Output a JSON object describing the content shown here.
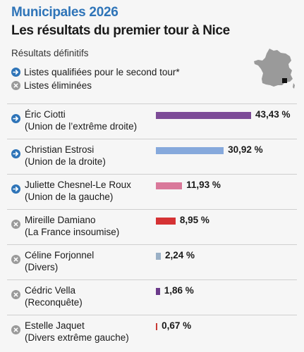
{
  "header": {
    "kicker": "Municipales 2026",
    "title": "Les résultats du premier tour à Nice",
    "subtitle": "Résultats définitifs"
  },
  "legend": {
    "qualified": "Listes qualifiées pour le second tour*",
    "eliminated": "Listes éliminées"
  },
  "chart_data": {
    "type": "bar",
    "categories": [
      "Éric Ciotti",
      "Christian Estrosi",
      "Juliette Chesnel-Le Roux",
      "Mireille Damiano",
      "Céline Forjonnel",
      "Cédric Vella",
      "Estelle Jaquet"
    ],
    "values": [
      43.43,
      30.92,
      11.93,
      8.95,
      2.24,
      1.86,
      0.67
    ],
    "rows": [
      {
        "name": "Éric Ciotti",
        "party": "(Union de l’extrême droite)",
        "value": 43.43,
        "label": "43,43 %",
        "status": "qualified",
        "color": "#7d4b97"
      },
      {
        "name": "Christian Estrosi",
        "party": "(Union de la droite)",
        "value": 30.92,
        "label": "30,92 %",
        "status": "qualified",
        "color": "#86a9dc"
      },
      {
        "name": "Juliette Chesnel-Le Roux",
        "party": "(Union de la gauche)",
        "value": 11.93,
        "label": "11,93 %",
        "status": "qualified",
        "color": "#d9789a"
      },
      {
        "name": "Mireille Damiano",
        "party": "(La France insoumise)",
        "value": 8.95,
        "label": "8,95 %",
        "status": "eliminated",
        "color": "#d53234"
      },
      {
        "name": "Céline Forjonnel",
        "party": "(Divers)",
        "value": 2.24,
        "label": "2,24 %",
        "status": "eliminated",
        "color": "#9ab0c6"
      },
      {
        "name": "Cédric Vella",
        "party": "(Reconquête)",
        "value": 1.86,
        "label": "1,86 %",
        "status": "eliminated",
        "color": "#6b3a8a"
      },
      {
        "name": "Estelle Jaquet",
        "party": "(Divers extrême gauche)",
        "value": 0.67,
        "label": "0,67 %",
        "status": "eliminated",
        "color": "#c93a35"
      }
    ]
  },
  "colors": {
    "accent": "#2e74b8",
    "eliminated_icon": "#9a9a9a"
  },
  "icons": {
    "qualified": "arrow-right-circle-icon",
    "eliminated": "x-circle-icon",
    "map": "france-map-icon"
  }
}
